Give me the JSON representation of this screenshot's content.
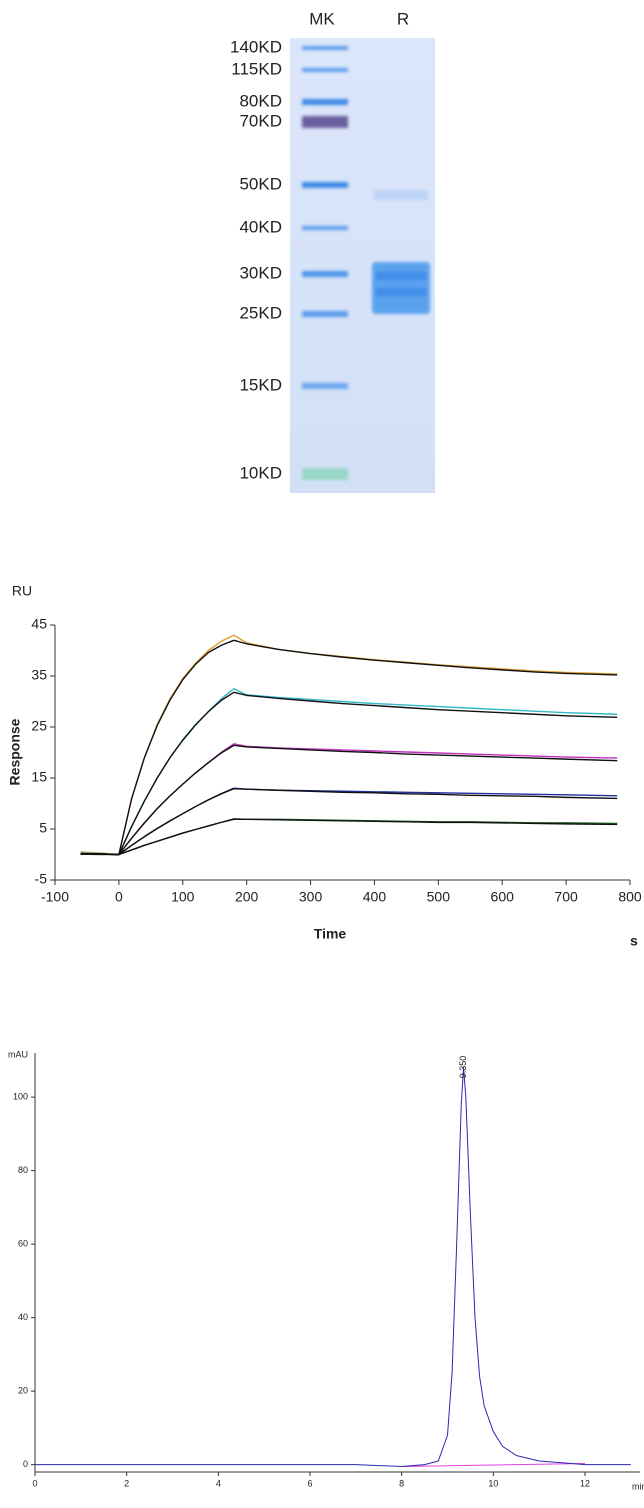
{
  "gel": {
    "lanes": [
      "MK",
      "R"
    ],
    "markers": [
      "140KD",
      "115KD",
      "80KD",
      "70KD",
      "50KD",
      "40KD",
      "30KD",
      "25KD",
      "15KD",
      "10KD"
    ]
  },
  "chart_data": [
    {
      "type": "line",
      "y_unit": "RU",
      "y_label": "Response",
      "x_label": "Time",
      "x_unit": "s",
      "x": [
        -60,
        -30,
        0,
        20,
        40,
        60,
        80,
        100,
        120,
        140,
        160,
        180,
        200,
        250,
        300,
        350,
        400,
        450,
        500,
        550,
        600,
        650,
        700,
        780
      ],
      "series": [
        {
          "color": "#e0a030",
          "values": [
            0.5,
            0.3,
            0,
            11,
            19,
            25.5,
            30.5,
            34.5,
            37.5,
            40,
            41.8,
            43,
            41.5,
            40.2,
            39.4,
            38.8,
            38.2,
            37.7,
            37.2,
            36.8,
            36.4,
            36,
            35.7,
            35.4
          ]
        },
        {
          "color": "#30b8c8",
          "values": [
            0.3,
            0.2,
            0,
            5.5,
            10.5,
            15,
            19,
            22.5,
            25.5,
            28,
            30.5,
            32.5,
            31.3,
            30.8,
            30.4,
            30,
            29.6,
            29.3,
            29,
            28.7,
            28.4,
            28.1,
            27.8,
            27.5
          ]
        },
        {
          "color": "#c030c0",
          "values": [
            0.2,
            0.1,
            0,
            3.2,
            6.2,
            9,
            11.5,
            13.8,
            16,
            18,
            20,
            21.7,
            21.2,
            20.9,
            20.7,
            20.5,
            20.3,
            20.1,
            19.9,
            19.7,
            19.5,
            19.3,
            19.1,
            18.9
          ]
        },
        {
          "color": "#2030a0",
          "values": [
            0.2,
            0.1,
            0,
            1.8,
            3.5,
            5.1,
            6.6,
            8,
            9.4,
            10.7,
            11.9,
            13,
            12.8,
            12.6,
            12.5,
            12.4,
            12.3,
            12.2,
            12.1,
            12,
            11.9,
            11.8,
            11.7,
            11.5
          ]
        },
        {
          "color": "#206020",
          "values": [
            0.1,
            0,
            0,
            0.9,
            1.8,
            2.6,
            3.4,
            4.2,
            4.9,
            5.6,
            6.3,
            7,
            6.9,
            6.9,
            6.8,
            6.7,
            6.6,
            6.5,
            6.4,
            6.4,
            6.3,
            6.2,
            6.2,
            6.1
          ]
        },
        {
          "color": "#111111",
          "values": [
            0.1,
            0.1,
            0,
            11,
            19,
            25.3,
            30.3,
            34.3,
            37.3,
            39.6,
            41,
            42,
            41.3,
            40.2,
            39.4,
            38.7,
            38.1,
            37.6,
            37.1,
            36.6,
            36.2,
            35.8,
            35.5,
            35.2
          ]
        },
        {
          "color": "#111111",
          "values": [
            0.1,
            0.1,
            0,
            5.5,
            10.5,
            15,
            19,
            22.4,
            25.4,
            28,
            30.2,
            31.8,
            31.2,
            30.6,
            30.1,
            29.6,
            29.2,
            28.8,
            28.4,
            28.1,
            27.8,
            27.5,
            27.2,
            26.9
          ]
        },
        {
          "color": "#111111",
          "values": [
            0.1,
            0.1,
            0,
            3.2,
            6.2,
            9,
            11.5,
            13.8,
            16,
            18,
            19.9,
            21.4,
            21.1,
            20.8,
            20.5,
            20.2,
            20,
            19.7,
            19.5,
            19.3,
            19.1,
            18.9,
            18.7,
            18.4
          ]
        },
        {
          "color": "#111111",
          "values": [
            0.1,
            0.1,
            0,
            1.8,
            3.5,
            5.1,
            6.6,
            8,
            9.4,
            10.7,
            11.9,
            12.9,
            12.8,
            12.6,
            12.4,
            12.2,
            12.1,
            11.9,
            11.8,
            11.6,
            11.5,
            11.4,
            11.2,
            11
          ]
        },
        {
          "color": "#111111",
          "values": [
            0.1,
            0.1,
            0,
            0.9,
            1.8,
            2.6,
            3.4,
            4.2,
            4.9,
            5.6,
            6.3,
            6.9,
            6.9,
            6.8,
            6.7,
            6.6,
            6.5,
            6.4,
            6.3,
            6.3,
            6.2,
            6.1,
            6,
            5.9
          ]
        }
      ],
      "xlim": [
        -100,
        800
      ],
      "xticks": [
        -100,
        0,
        100,
        200,
        300,
        400,
        500,
        600,
        700,
        800
      ],
      "ylim": [
        -5,
        45
      ],
      "yticks": [
        -5,
        5,
        15,
        25,
        35,
        45
      ]
    },
    {
      "type": "line",
      "y_unit": "mAU",
      "x_unit": "min",
      "x": [
        0,
        1,
        2,
        3,
        4,
        5,
        6,
        7,
        8,
        8.5,
        8.8,
        9.0,
        9.1,
        9.2,
        9.3,
        9.35,
        9.4,
        9.5,
        9.6,
        9.7,
        9.8,
        10.0,
        10.2,
        10.5,
        11,
        11.5,
        12,
        13
      ],
      "series": [
        {
          "color": "#e040e0",
          "values": [
            null,
            null,
            null,
            null,
            null,
            null,
            null,
            null,
            -0.5,
            -0.4,
            -0.35,
            -0.3,
            -0.28,
            -0.26,
            -0.24,
            -0.23,
            -0.22,
            -0.2,
            -0.18,
            -0.16,
            -0.14,
            -0.1,
            -0.06,
            0,
            0.1,
            0.2,
            0.3,
            null
          ]
        },
        {
          "color": "#2a2ab0",
          "values": [
            0,
            0,
            0,
            0,
            0,
            0,
            0,
            0,
            -0.5,
            0,
            1,
            8,
            25,
            60,
            98,
            108,
            100,
            68,
            40,
            24,
            16,
            9,
            5,
            2.5,
            1,
            0.5,
            0,
            0
          ]
        }
      ],
      "xlim": [
        0,
        13.2
      ],
      "xticks": [
        0,
        2,
        4,
        6,
        8,
        10,
        12
      ],
      "ylim": [
        -2,
        112
      ],
      "yticks": [
        0,
        20,
        40,
        60,
        80,
        100
      ],
      "annotations": [
        {
          "label": "9.350",
          "x": 9.35
        }
      ]
    }
  ]
}
